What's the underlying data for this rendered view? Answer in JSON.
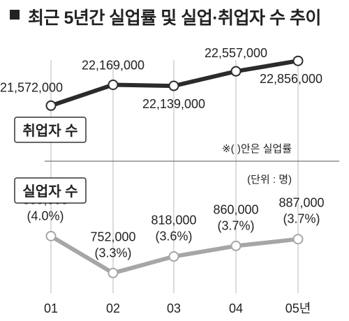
{
  "title": "최근 5년간 실업률 및 실업·취업자 수 추이",
  "note": "※(   )안은 실업률",
  "unit": "(단위 : 명)",
  "colors": {
    "employed": "#2b2b2b",
    "unemployed": "#a6a6a6",
    "grid": "#b9b9b9"
  },
  "chart_data": [
    {
      "type": "line",
      "name": "취업자 수",
      "categories": [
        "01",
        "02",
        "03",
        "04",
        "05년"
      ],
      "values": [
        21572000,
        22169000,
        22139000,
        22557000,
        22856000
      ],
      "labels": [
        "21,572,000",
        "22,169,000",
        "22,139,000",
        "22,557,000",
        "22,856,000"
      ]
    },
    {
      "type": "line",
      "name": "실업자 수",
      "categories": [
        "01",
        "02",
        "03",
        "04",
        "05년"
      ],
      "values": [
        899000,
        752000,
        818000,
        860000,
        887000
      ],
      "rates": [
        4.0,
        3.3,
        3.6,
        3.7,
        3.7
      ],
      "labels": [
        "899,000",
        "752,000",
        "818,000",
        "860,000",
        "887,000"
      ],
      "rate_labels": [
        "(4.0%)",
        "(3.3%)",
        "(3.6%)",
        "(3.7%)",
        "(3.7%)"
      ]
    }
  ]
}
